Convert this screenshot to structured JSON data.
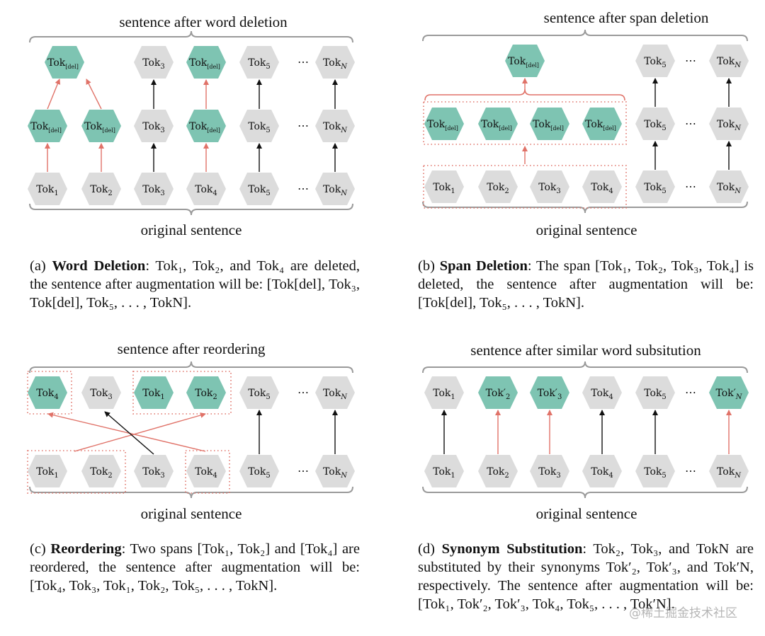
{
  "colors": {
    "token_gray": "#dcdcdc",
    "token_teal": "#7ec4b2",
    "arrow_red": "#e07268",
    "arrow_black": "#111111",
    "brace": "#9a9a9a"
  },
  "panels": [
    {
      "id": "a",
      "top_title": "sentence after word deletion",
      "bottom_title": "original sentence",
      "top_row": [
        {
          "base": "Tok",
          "sub": "[del]",
          "highlight": true
        },
        {
          "base": "Tok",
          "sub": "3",
          "highlight": false
        },
        {
          "base": "Tok",
          "sub": "[del]",
          "highlight": true
        },
        {
          "base": "Tok",
          "sub": "5",
          "highlight": false
        },
        {
          "base": "⋯",
          "sub": "",
          "highlight": false,
          "dots": true
        },
        {
          "base": "Tok",
          "sub": "N",
          "highlight": false
        }
      ],
      "middle_row": [
        {
          "base": "Tok",
          "sub": "[del]",
          "highlight": true
        },
        {
          "base": "Tok",
          "sub": "[del]",
          "highlight": true
        },
        {
          "base": "Tok",
          "sub": "3",
          "highlight": false
        },
        {
          "base": "Tok",
          "sub": "[del]",
          "highlight": true
        },
        {
          "base": "Tok",
          "sub": "5",
          "highlight": false
        },
        {
          "base": "⋯",
          "sub": "",
          "highlight": false,
          "dots": true
        },
        {
          "base": "Tok",
          "sub": "N",
          "highlight": false
        }
      ],
      "bottom_row": [
        {
          "base": "Tok",
          "sub": "1",
          "highlight": false
        },
        {
          "base": "Tok",
          "sub": "2",
          "highlight": false
        },
        {
          "base": "Tok",
          "sub": "3",
          "highlight": false
        },
        {
          "base": "Tok",
          "sub": "4",
          "highlight": false
        },
        {
          "base": "Tok",
          "sub": "5",
          "highlight": false
        },
        {
          "base": "⋯",
          "sub": "",
          "highlight": false,
          "dots": true
        },
        {
          "base": "Tok",
          "sub": "N",
          "highlight": false
        }
      ]
    },
    {
      "id": "b",
      "top_title": "sentence after span deletion",
      "bottom_title": "original sentence",
      "top_row": [
        {
          "base": "Tok",
          "sub": "[del]",
          "highlight": true
        },
        {
          "base": "Tok",
          "sub": "5",
          "highlight": false
        },
        {
          "base": "⋯",
          "sub": "",
          "highlight": false,
          "dots": true
        },
        {
          "base": "Tok",
          "sub": "N",
          "highlight": false
        }
      ],
      "middle_row": [
        {
          "base": "Tok",
          "sub": "[del]",
          "highlight": true
        },
        {
          "base": "Tok",
          "sub": "[del]",
          "highlight": true
        },
        {
          "base": "Tok",
          "sub": "[del]",
          "highlight": true
        },
        {
          "base": "Tok",
          "sub": "[del]",
          "highlight": true
        },
        {
          "base": "Tok",
          "sub": "5",
          "highlight": false
        },
        {
          "base": "⋯",
          "sub": "",
          "highlight": false,
          "dots": true
        },
        {
          "base": "Tok",
          "sub": "N",
          "highlight": false
        }
      ],
      "bottom_row": [
        {
          "base": "Tok",
          "sub": "1",
          "highlight": false
        },
        {
          "base": "Tok",
          "sub": "2",
          "highlight": false
        },
        {
          "base": "Tok",
          "sub": "3",
          "highlight": false
        },
        {
          "base": "Tok",
          "sub": "4",
          "highlight": false
        },
        {
          "base": "Tok",
          "sub": "5",
          "highlight": false
        },
        {
          "base": "⋯",
          "sub": "",
          "highlight": false,
          "dots": true
        },
        {
          "base": "Tok",
          "sub": "N",
          "highlight": false
        }
      ]
    },
    {
      "id": "c",
      "top_title": "sentence after reordering",
      "bottom_title": "original sentence",
      "top_row": [
        {
          "base": "Tok",
          "sub": "4",
          "highlight": true
        },
        {
          "base": "Tok",
          "sub": "3",
          "highlight": false
        },
        {
          "base": "Tok",
          "sub": "1",
          "highlight": true
        },
        {
          "base": "Tok",
          "sub": "2",
          "highlight": true
        },
        {
          "base": "Tok",
          "sub": "5",
          "highlight": false
        },
        {
          "base": "⋯",
          "sub": "",
          "highlight": false,
          "dots": true
        },
        {
          "base": "Tok",
          "sub": "N",
          "highlight": false
        }
      ],
      "bottom_row": [
        {
          "base": "Tok",
          "sub": "1",
          "highlight": false
        },
        {
          "base": "Tok",
          "sub": "2",
          "highlight": false
        },
        {
          "base": "Tok",
          "sub": "3",
          "highlight": false
        },
        {
          "base": "Tok",
          "sub": "4",
          "highlight": false
        },
        {
          "base": "Tok",
          "sub": "5",
          "highlight": false
        },
        {
          "base": "⋯",
          "sub": "",
          "highlight": false,
          "dots": true
        },
        {
          "base": "Tok",
          "sub": "N",
          "highlight": false
        }
      ]
    },
    {
      "id": "d",
      "top_title": "sentence after similar word subsitution",
      "bottom_title": "original sentence",
      "top_row": [
        {
          "base": "Tok",
          "sub": "1",
          "highlight": false
        },
        {
          "base": "Tok′",
          "sub": "2",
          "highlight": true
        },
        {
          "base": "Tok′",
          "sub": "3",
          "highlight": true
        },
        {
          "base": "Tok",
          "sub": "4",
          "highlight": false
        },
        {
          "base": "Tok",
          "sub": "5",
          "highlight": false
        },
        {
          "base": "⋯",
          "sub": "",
          "highlight": false,
          "dots": true
        },
        {
          "base": "Tok′",
          "sub": "N",
          "highlight": true
        }
      ],
      "bottom_row": [
        {
          "base": "Tok",
          "sub": "1",
          "highlight": false
        },
        {
          "base": "Tok",
          "sub": "2",
          "highlight": false
        },
        {
          "base": "Tok",
          "sub": "3",
          "highlight": false
        },
        {
          "base": "Tok",
          "sub": "4",
          "highlight": false
        },
        {
          "base": "Tok",
          "sub": "5",
          "highlight": false
        },
        {
          "base": "⋯",
          "sub": "",
          "highlight": false,
          "dots": true
        },
        {
          "base": "Tok",
          "sub": "N",
          "highlight": false
        }
      ]
    }
  ],
  "captions": {
    "a": {
      "label": "(a) ",
      "bold": "Word Deletion",
      "text": ": Tok₁, Tok₂, and Tok₄ are deleted, the sentence after augmentation will be: [Tok[del], Tok₃, Tok[del], Tok₅, . . . , TokN]."
    },
    "b": {
      "label": "(b) ",
      "bold": "Span Deletion",
      "text": ": The span [Tok₁, Tok₂, Tok₃, Tok₄] is deleted, the sentence after augmentation will be: [Tok[del], Tok₅, . . . , TokN]."
    },
    "c": {
      "label": "(c) ",
      "bold": "Reordering",
      "text": ": Two spans [Tok₁, Tok₂] and [Tok₄] are reordered, the sentence after augmentation will be: [Tok₄, Tok₃, Tok₁, Tok₂, Tok₅, . . . , TokN]."
    },
    "d": {
      "label": "(d) ",
      "bold": "Synonym Substitution",
      "text": ": Tok₂, Tok₃, and TokN are substituted by their synonyms Tok′₂, Tok′₃, and Tok′N, respectively. The sentence after augmentation will be: [Tok₁, Tok′₂, Tok′₃, Tok₄, Tok₅, . . . , Tok′N]."
    }
  },
  "watermark": "@稀土掘金技术社区"
}
